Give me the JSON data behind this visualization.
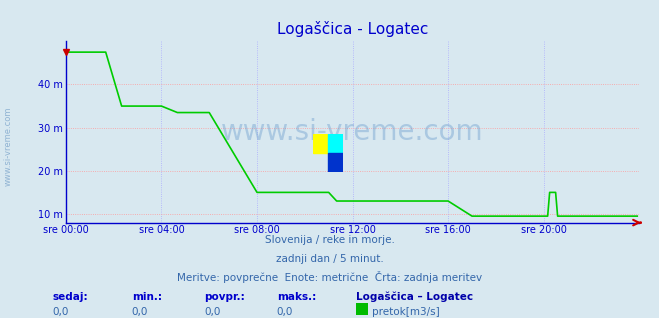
{
  "title": "Logaščica - Logatec",
  "title_color": "#0000cd",
  "bg_color": "#d8e8f0",
  "plot_bg_color": "#d8e8f0",
  "grid_color_h": "#ff9999",
  "grid_color_v": "#aaaaff",
  "tick_color": "#0000cd",
  "xlabel_ticks": [
    "sre 00:00",
    "sre 04:00",
    "sre 08:00",
    "sre 12:00",
    "sre 16:00",
    "sre 20:00"
  ],
  "yticks": [
    10,
    20,
    30,
    40
  ],
  "ytick_labels": [
    "10 m",
    "20 m",
    "30 m",
    "40 m"
  ],
  "ylim": [
    8,
    50
  ],
  "xlim": [
    0,
    288
  ],
  "line_color": "#00cc00",
  "line_width": 1.2,
  "watermark_text": "www.si-vreme.com",
  "watermark_color": "#6699cc",
  "watermark_alpha": 0.4,
  "footnote1": "Slovenija / reke in morje.",
  "footnote2": "zadnji dan / 5 minut.",
  "footnote3": "Meritve: povprečne  Enote: metrične  Črta: zadnja meritev",
  "footnote_color": "#3366aa",
  "legend_label_sedaj": "sedaj:",
  "legend_label_min": "min.:",
  "legend_label_povpr": "povpr.:",
  "legend_label_maks": "maks.:",
  "legend_val_sedaj": "0,0",
  "legend_val_min": "0,0",
  "legend_val_povpr": "0,0",
  "legend_val_maks": "0,0",
  "legend_station": "Logaščica – Logatec",
  "legend_series": "pretok[m3/s]",
  "legend_color": "#00bb00",
  "x_tick_positions": [
    0,
    48,
    96,
    144,
    192,
    240
  ],
  "arrow_color": "#cc0000",
  "left_border_color": "#0000cc",
  "top_marker_color": "#cc0000"
}
